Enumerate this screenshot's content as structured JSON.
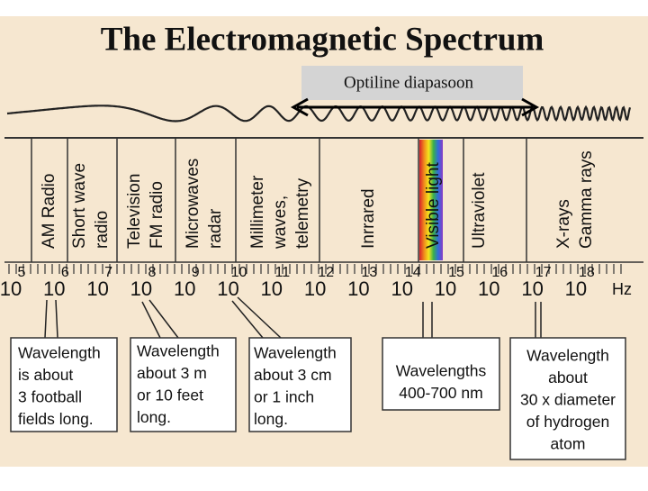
{
  "title": "The Electromagnetic Spectrum",
  "range_label": "Optiline diapasoon",
  "bands": [
    {
      "lines": [
        "AM Radio"
      ]
    },
    {
      "lines": [
        "Short wave",
        "radio"
      ]
    },
    {
      "lines": [
        "Television",
        "FM radio"
      ]
    },
    {
      "lines": [
        "Microwaves",
        "radar"
      ]
    },
    {
      "lines": [
        "Millimeter",
        "waves,",
        "telemetry"
      ]
    },
    {
      "lines": [
        "Inrrared"
      ]
    },
    {
      "lines": [
        "Visible light"
      ]
    },
    {
      "lines": [
        "Ultraviolet"
      ]
    },
    {
      "lines": [
        "X-rays",
        "Gamma rays"
      ]
    }
  ],
  "scale": {
    "base": "10",
    "exponents": [
      5,
      6,
      7,
      8,
      9,
      10,
      11,
      12,
      13,
      14,
      15,
      16,
      17,
      18
    ],
    "unit": "Hz"
  },
  "notes": [
    {
      "lines": [
        "Wavelength",
        "is about",
        "3 football",
        "fields long."
      ]
    },
    {
      "lines": [
        "Wavelength",
        "about 3 m",
        "or 10 feet",
        "long."
      ]
    },
    {
      "lines": [
        "Wavelength",
        "about 3 cm",
        "or 1 inch",
        "long."
      ]
    },
    {
      "lines": [
        "Wavelengths",
        "400-700 nm"
      ]
    },
    {
      "lines": [
        "Wavelength",
        "about",
        "30 x diameter",
        "of hydrogen",
        "atom"
      ]
    }
  ]
}
